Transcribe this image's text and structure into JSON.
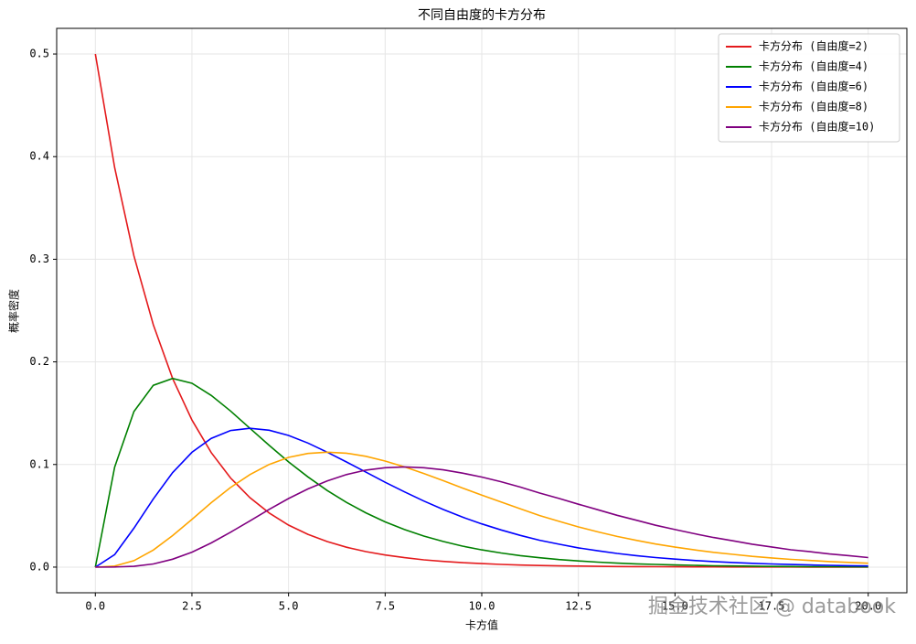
{
  "chart_data": {
    "type": "line",
    "title": "不同自由度的卡方分布",
    "xlabel": "卡方值",
    "ylabel": "概率密度",
    "watermark": "掘金技术社区 @ databook",
    "x": [
      0,
      0.5,
      1,
      1.5,
      2,
      2.5,
      3,
      3.5,
      4,
      4.5,
      5,
      5.5,
      6,
      6.5,
      7,
      7.5,
      8,
      8.5,
      9,
      9.5,
      10,
      10.5,
      11,
      11.5,
      12,
      12.5,
      13,
      13.5,
      14,
      14.5,
      15,
      15.5,
      16,
      16.5,
      17,
      17.5,
      18,
      18.5,
      19,
      19.5,
      20
    ],
    "series": [
      {
        "name": "卡方分布 (自由度=2)",
        "color": "#e41a1c",
        "values": [
          0.5,
          0.3894,
          0.3033,
          0.2362,
          0.1839,
          0.1433,
          0.1116,
          0.0869,
          0.0677,
          0.0527,
          0.041,
          0.032,
          0.0249,
          0.0194,
          0.0151,
          0.0118,
          0.0092,
          0.0071,
          0.0056,
          0.0043,
          0.0034,
          0.0026,
          0.002,
          0.0016,
          0.0012,
          0.001,
          0.0008,
          0.0006,
          0.0005,
          0.0004,
          0.0003,
          0.0002,
          0.0002,
          0.0001,
          0.0001,
          0.0001,
          0.0001,
          0,
          0,
          0,
          0
        ]
      },
      {
        "name": "卡方分布 (自由度=4)",
        "color": "#008000",
        "values": [
          0,
          0.0974,
          0.1516,
          0.1772,
          0.1839,
          0.1791,
          0.1673,
          0.1521,
          0.1353,
          0.1186,
          0.1026,
          0.0879,
          0.0747,
          0.0631,
          0.0529,
          0.0441,
          0.0366,
          0.0303,
          0.025,
          0.0205,
          0.0168,
          0.0138,
          0.0112,
          0.0091,
          0.0074,
          0.006,
          0.0049,
          0.0039,
          0.0032,
          0.0026,
          0.0021,
          0.0017,
          0.0013,
          0.0011,
          0.0009,
          0.0007,
          0.0006,
          0.0004,
          0.0004,
          0.0003,
          0.0002
        ]
      },
      {
        "name": "卡方分布 (自由度=6)",
        "color": "#0000ff",
        "values": [
          0,
          0.0122,
          0.0379,
          0.0665,
          0.092,
          0.1119,
          0.1255,
          0.1331,
          0.1353,
          0.1334,
          0.1283,
          0.1209,
          0.112,
          0.1025,
          0.0926,
          0.0827,
          0.0733,
          0.0644,
          0.0562,
          0.0487,
          0.0421,
          0.0362,
          0.0309,
          0.0262,
          0.0223,
          0.0188,
          0.0159,
          0.0133,
          0.0112,
          0.0093,
          0.0078,
          0.0065,
          0.0054,
          0.0045,
          0.0037,
          0.0031,
          0.0025,
          0.0021,
          0.0017,
          0.0014,
          0.0011
        ]
      },
      {
        "name": "卡方分布 (自由度=8)",
        "color": "#ffa500",
        "values": [
          0,
          0.001,
          0.0063,
          0.0166,
          0.0307,
          0.0466,
          0.0628,
          0.0776,
          0.0902,
          0.1001,
          0.1069,
          0.1108,
          0.112,
          0.111,
          0.108,
          0.1034,
          0.0977,
          0.0912,
          0.0843,
          0.0771,
          0.0702,
          0.0634,
          0.0567,
          0.0502,
          0.0446,
          0.0392,
          0.0344,
          0.0299,
          0.0261,
          0.0225,
          0.0195,
          0.0168,
          0.0144,
          0.0124,
          0.0105,
          0.009,
          0.0075,
          0.0065,
          0.0054,
          0.0046,
          0.0038
        ]
      },
      {
        "name": "卡方分布 (自由度=10)",
        "color": "#800080",
        "values": [
          0,
          0.0001,
          0.0008,
          0.0031,
          0.0077,
          0.0146,
          0.0236,
          0.034,
          0.0451,
          0.0563,
          0.0668,
          0.0762,
          0.084,
          0.0902,
          0.0945,
          0.0969,
          0.0977,
          0.0969,
          0.0948,
          0.0916,
          0.0878,
          0.0832,
          0.078,
          0.0722,
          0.0669,
          0.0613,
          0.0559,
          0.0505,
          0.0457,
          0.0408,
          0.0366,
          0.0326,
          0.0288,
          0.0256,
          0.0223,
          0.0197,
          0.0169,
          0.015,
          0.0128,
          0.0112,
          0.0093
        ]
      }
    ],
    "xlim": [
      -1,
      21
    ],
    "ylim": [
      -0.025,
      0.525
    ],
    "xticks": [
      {
        "value": 0,
        "label": "0.0"
      },
      2.5,
      {
        "value": 5,
        "label": "5.0"
      },
      7.5,
      {
        "value": 10,
        "label": "10.0"
      },
      12.5,
      {
        "value": 15,
        "label": "15.0"
      },
      17.5,
      {
        "value": 20,
        "label": "20.0"
      }
    ],
    "yticks": [
      {
        "value": 0,
        "label": "0.0"
      },
      0.1,
      0.2,
      0.3,
      0.4,
      0.5
    ],
    "grid": true,
    "legend": "upper right"
  }
}
